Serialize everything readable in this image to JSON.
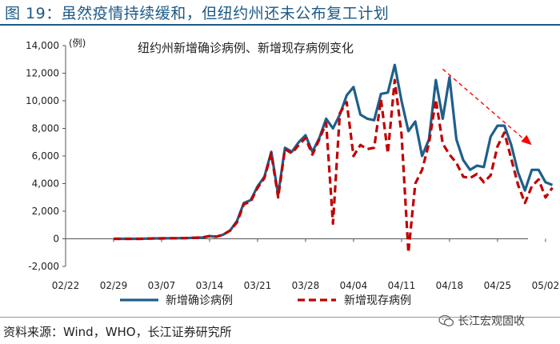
{
  "header": {
    "title": "图 19：虽然疫情持续缓和，但纽约州还未公布复工计划"
  },
  "footer": {
    "source": "资料来源：Wind，WHO，长江证券研究所",
    "brand": "长江宏观固收"
  },
  "colors": {
    "accent": "#1d5a86",
    "series1": "#1f5f8b",
    "series2": "#c00000",
    "arrow": "#ff0000"
  },
  "chart_data": {
    "type": "line",
    "title": "纽约州新增确诊病例、新增现存病例变化",
    "unit_label": "(例)",
    "ylim": [
      -2000,
      14000
    ],
    "yticks": [
      -2000,
      0,
      2000,
      4000,
      6000,
      8000,
      10000,
      12000,
      14000
    ],
    "ytick_labels": [
      "-2,000",
      "0",
      "2,000",
      "4,000",
      "6,000",
      "8,000",
      "10,000",
      "12,000",
      "14,000"
    ],
    "xtick_labels": [
      "02/22",
      "02/29",
      "03/07",
      "03/14",
      "03/21",
      "03/28",
      "04/04",
      "04/11",
      "04/18",
      "04/25",
      "05/02"
    ],
    "x_start": "02/22",
    "data_start": "02/29",
    "grid": false,
    "legend_position": "bottom",
    "series": [
      {
        "name": "新增确诊病例",
        "values": [
          0,
          0,
          0,
          0,
          0,
          20,
          30,
          30,
          40,
          40,
          50,
          60,
          80,
          100,
          200,
          150,
          300,
          600,
          1300,
          2600,
          2800,
          3800,
          4500,
          6300,
          3200,
          6600,
          6300,
          7000,
          7500,
          6300,
          7300,
          8700,
          8000,
          9000,
          10400,
          11000,
          9000,
          8700,
          8600,
          10500,
          10600,
          12600,
          10000,
          7800,
          8500,
          6000,
          7200,
          11500,
          8700,
          11700,
          7200,
          5700,
          5000,
          5300,
          5200,
          7400,
          8200,
          8200,
          6800,
          4800,
          3500,
          5000,
          5000,
          4100,
          3900
        ]
      },
      {
        "name": "新增现存病例",
        "values": [
          0,
          0,
          0,
          0,
          0,
          20,
          30,
          30,
          40,
          40,
          50,
          60,
          80,
          100,
          200,
          150,
          300,
          600,
          1200,
          2500,
          2700,
          3700,
          4400,
          6200,
          3000,
          6500,
          6200,
          6800,
          7300,
          6100,
          7200,
          8400,
          1100,
          9100,
          9900,
          6000,
          6800,
          6500,
          6600,
          10100,
          6200,
          11500,
          7600,
          -1000,
          4000,
          5000,
          6900,
          10100,
          6900,
          6100,
          5500,
          4500,
          4400,
          4700,
          4100,
          4600,
          6700,
          7700,
          5800,
          3900,
          2600,
          3800,
          4300,
          3000,
          3700
        ]
      }
    ],
    "annotation": {
      "type": "trend-arrow",
      "from_x": "04/17",
      "from_y": 12300,
      "to_x": "04/30",
      "to_y": 6800
    }
  }
}
